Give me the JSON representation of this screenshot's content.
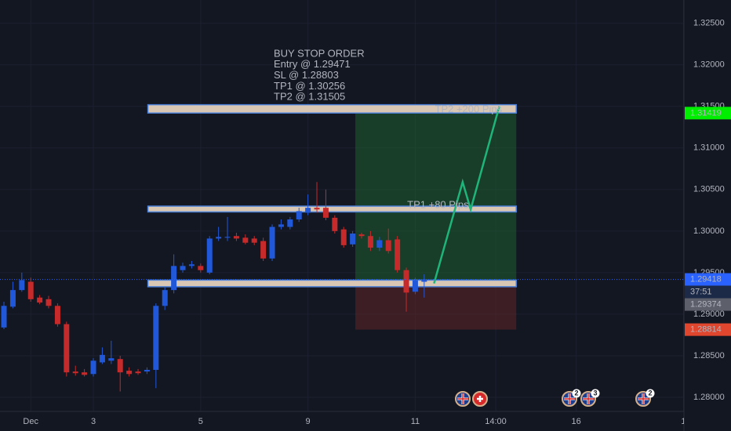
{
  "chart_data": {
    "type": "candlestick",
    "open": [
      1.2884,
      1.2909,
      1.2929,
      1.2939,
      1.292,
      1.2918,
      1.291,
      1.2888,
      1.2831,
      1.283,
      1.2828,
      1.2842,
      1.2844,
      1.2846,
      1.2832,
      1.2831,
      1.2831,
      1.2833,
      1.291,
      1.2929,
      1.2953,
      1.2958,
      1.2958,
      1.295,
      1.2991,
      1.2992,
      1.2994,
      1.2992,
      1.2991,
      1.2988,
      1.2967,
      1.3005,
      1.3005,
      1.3014,
      1.3022,
      1.3028,
      1.3028,
      1.3016,
      1.3002,
      1.2984,
      1.2996,
      1.2994,
      1.298,
      1.2989,
      1.299,
      1.2953,
      1.2927,
      1.2939
    ],
    "high": [
      1.2915,
      1.2939,
      1.295,
      1.2944,
      1.2923,
      1.2922,
      1.2913,
      1.2891,
      1.2838,
      1.2834,
      1.2847,
      1.286,
      1.2868,
      1.285,
      1.2836,
      1.2834,
      1.2836,
      1.2913,
      1.2932,
      1.2972,
      1.2962,
      1.2964,
      1.2961,
      1.2994,
      1.3005,
      1.3017,
      1.2998,
      1.2996,
      1.2994,
      1.2992,
      1.3008,
      1.3014,
      1.3017,
      1.3028,
      1.3044,
      1.3059,
      1.305,
      1.3019,
      1.3005,
      1.3,
      1.2998,
      1.3,
      1.2993,
      1.3003,
      1.2994,
      1.2956,
      1.2944,
      1.2948
    ],
    "low": [
      1.2882,
      1.2907,
      1.2927,
      1.2915,
      1.2912,
      1.2907,
      1.2885,
      1.2825,
      1.2826,
      1.2825,
      1.2825,
      1.284,
      1.284,
      1.2807,
      1.2825,
      1.2827,
      1.2828,
      1.2811,
      1.2905,
      1.2925,
      1.295,
      1.2955,
      1.295,
      1.2948,
      1.2988,
      1.2988,
      1.2988,
      1.2984,
      1.2983,
      1.2964,
      1.2964,
      1.3002,
      1.3002,
      1.3011,
      1.3019,
      1.3022,
      1.3013,
      1.2997,
      1.298,
      1.2981,
      1.2991,
      1.2976,
      1.2976,
      1.2973,
      1.295,
      1.2903,
      1.2924,
      1.292
    ],
    "close": [
      1.291,
      1.2929,
      1.2941,
      1.2918,
      1.2914,
      1.291,
      1.2888,
      1.283,
      1.2829,
      1.2827,
      1.2844,
      1.2851,
      1.2847,
      1.283,
      1.2828,
      1.2829,
      1.2833,
      1.291,
      1.2929,
      1.2958,
      1.2958,
      1.296,
      1.2953,
      1.2991,
      1.2993,
      1.2993,
      1.2991,
      1.2986,
      1.2986,
      1.2967,
      1.3005,
      1.3008,
      1.3014,
      1.3024,
      1.3028,
      1.3026,
      1.3016,
      1.3,
      1.2983,
      1.2997,
      1.2994,
      1.298,
      1.2989,
      1.2976,
      1.2953,
      1.2926,
      1.2941,
      1.29418
    ],
    "up_color": "#2158d9",
    "down_color": "#c62a2a",
    "xlim": [
      -0.44,
      76.05
    ],
    "xticks": [
      {
        "value": 3,
        "label": "Dec"
      },
      {
        "value": 10,
        "label": "3"
      },
      {
        "value": 22,
        "label": "5"
      },
      {
        "value": 34,
        "label": "9"
      },
      {
        "value": 46,
        "label": "11"
      },
      {
        "value": 55,
        "label": "14:00"
      },
      {
        "value": 64,
        "label": "16"
      },
      {
        "value": 76,
        "label": "1"
      }
    ],
    "ylim": [
      1.2783,
      1.3278
    ],
    "yticks": [
      {
        "value": 1.325,
        "label": "1.32500"
      },
      {
        "value": 1.32,
        "label": "1.32000"
      },
      {
        "value": 1.315,
        "label": "1.31500"
      },
      {
        "value": 1.31,
        "label": "1.31000"
      },
      {
        "value": 1.305,
        "label": "1.30500"
      },
      {
        "value": 1.3,
        "label": "1.30000"
      },
      {
        "value": 1.295,
        "label": "1.29500"
      },
      {
        "value": 1.29,
        "label": "1.29000"
      },
      {
        "value": 1.285,
        "label": "1.28500"
      },
      {
        "value": 1.28,
        "label": "1.28000"
      }
    ],
    "grid": true,
    "annotation": {
      "color": "#4d9cf0",
      "lines": [
        "BUY STOP ORDER",
        "Entry @ 1.29471",
        "SL @ 1.28803",
        "TP1 @ 1.30256",
        "TP2 @ 1.31505"
      ]
    },
    "zones": [
      {
        "from": 16.1,
        "to": 57.3,
        "low": 1.3142,
        "high": 1.3152
      },
      {
        "from": 16.1,
        "to": 57.3,
        "low": 1.3023,
        "high": 1.303
      },
      {
        "from": 16.1,
        "to": 57.3,
        "low": 1.2933,
        "high": 1.2941
      }
    ],
    "position": {
      "from": 39.3,
      "to": 57.3,
      "entry": 1.29374,
      "target": 1.31419,
      "stop": 1.28814
    },
    "projection": {
      "color": "#1fb57a",
      "x": [
        48.1,
        51.3,
        52.2,
        55.4
      ],
      "y": [
        1.2937,
        1.3059,
        1.3026,
        1.315
      ]
    },
    "targets": [
      {
        "text": "TP2 +200 Pips",
        "x": 48.2,
        "y": 1.3146
      },
      {
        "text": "TP1 +80 Pips",
        "x": 45.1,
        "y": 1.3031
      }
    ],
    "target_color": "#f0a040",
    "last_price": 1.29418,
    "price_labels": [
      {
        "value": 1.31419,
        "color": "#00ee00",
        "text_color": "#131722"
      },
      {
        "value": 1.29418,
        "color": "#2962ff",
        "text_color": "#ffffff"
      },
      {
        "value": 1.29374,
        "color": "#5d606b",
        "text_color": "#ffffff"
      },
      {
        "value": 1.28814,
        "color": "#e0452e",
        "text_color": "#ffffff"
      }
    ],
    "countdown": "37:51",
    "event_badges": [
      "2",
      "3",
      "2"
    ]
  }
}
